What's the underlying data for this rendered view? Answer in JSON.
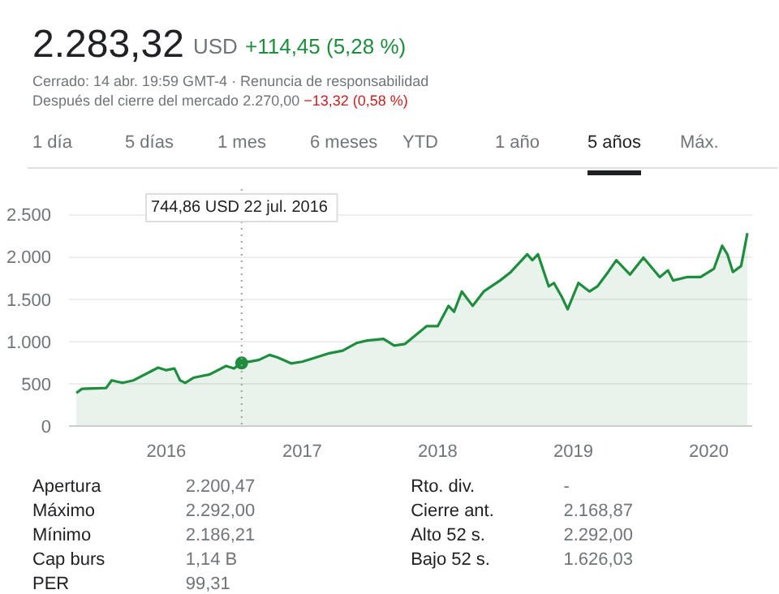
{
  "chart_data": {
    "type": "area",
    "grid": "y",
    "annotations": [
      "2.283,32",
      "USD",
      "+114,45 (5,28 %)",
      "Cerrado: 14 abr. 19:59 GMT-4 · Renuncia de responsabilidad",
      "Después del cierre del mercado 2.270,00",
      "−13,32 (0,58 %)",
      "1 día",
      "5 días",
      "1 mes",
      "6 meses",
      "YTD",
      "1 año",
      "5 años",
      "Máx.",
      "Apertura",
      "2.200,47",
      "Máximo",
      "2.292,00",
      "Mínimo",
      "2.186,21",
      "Cap burs",
      "1,14 B",
      "PER",
      "99,31",
      "Rto. div.",
      "-",
      "Cierre ant.",
      "2.168,87",
      "Alto 52 s.",
      "2.292,00",
      "Bajo 52 s.",
      "1.626,03",
      "744,86 USD  22 jul. 2016"
    ],
    "ref_lines": [
      {
        "axis": "x",
        "value": "2016-07-22",
        "color": "#9e9e9e",
        "line_style": "dotted"
      }
    ],
    "xlim": [
      "2015-04-14",
      "2020-04-27"
    ],
    "ylim": [
      0,
      2800
    ],
    "xticks": [
      {
        "value": "2016-01-01",
        "label": "2016"
      },
      {
        "value": "2017-01-01",
        "label": "2017"
      },
      {
        "value": "2018-01-01",
        "label": "2018"
      },
      {
        "value": "2019-01-01",
        "label": "2019"
      },
      {
        "value": "2020-01-01",
        "label": "2020"
      }
    ],
    "yticks": [
      0,
      500,
      {
        "value": 1000,
        "label": "1.000"
      },
      {
        "value": 1500,
        "label": "1.500"
      },
      {
        "value": 2000,
        "label": "2.000"
      },
      {
        "value": 2500,
        "label": "2.500"
      }
    ],
    "series": [
      {
        "color": "#1e8e3e",
        "x": [
          "2015-05-04",
          "2015-05-19",
          "2015-07-23",
          "2015-08-07",
          "2015-09-05",
          "2015-10-05",
          "2015-11-18",
          "2015-12-10",
          "2016-01-01",
          "2016-01-23",
          "2016-02-07",
          "2016-02-21",
          "2016-03-14",
          "2016-04-27",
          "2016-06-10",
          "2016-07-01",
          "2016-07-22",
          "2016-09-06",
          "2016-10-05",
          "2016-10-27",
          "2016-12-02",
          "2017-01-01",
          "2017-02-07",
          "2017-03-15",
          "2017-04-20",
          "2017-05-27",
          "2017-06-25",
          "2017-08-08",
          "2017-09-06",
          "2017-10-05",
          "2017-10-27",
          "2017-12-02",
          "2018-01-01",
          "2018-01-30",
          "2018-02-14",
          "2018-03-07",
          "2018-04-05",
          "2018-05-05",
          "2018-06-18",
          "2018-07-17",
          "2018-08-30",
          "2018-09-13",
          "2018-09-28",
          "2018-10-27",
          "2018-11-10",
          "2018-12-02",
          "2018-12-17",
          "2019-01-15",
          "2019-02-14",
          "2019-03-07",
          "2019-04-05",
          "2019-04-27",
          "2019-06-03",
          "2019-07-09",
          "2019-08-22",
          "2019-09-13",
          "2019-09-27",
          "2019-11-03",
          "2019-12-10",
          "2020-01-15",
          "2020-02-06",
          "2020-02-20",
          "2020-03-06",
          "2020-03-28",
          "2020-04-14"
        ],
        "values": [
          390,
          440,
          450,
          540,
          510,
          540,
          640,
          690,
          660,
          680,
          540,
          510,
          570,
          610,
          710,
          680,
          745,
          780,
          840,
          810,
          740,
          760,
          810,
          860,
          890,
          980,
          1010,
          1030,
          950,
          970,
          1050,
          1180,
          1180,
          1420,
          1350,
          1590,
          1420,
          1590,
          1720,
          1820,
          2030,
          1960,
          2030,
          1650,
          1690,
          1520,
          1380,
          1690,
          1590,
          1650,
          1820,
          1960,
          1790,
          1990,
          1760,
          1840,
          1720,
          1760,
          1760,
          1860,
          2130,
          2030,
          1820,
          1890,
          2280
        ]
      }
    ]
  }
}
